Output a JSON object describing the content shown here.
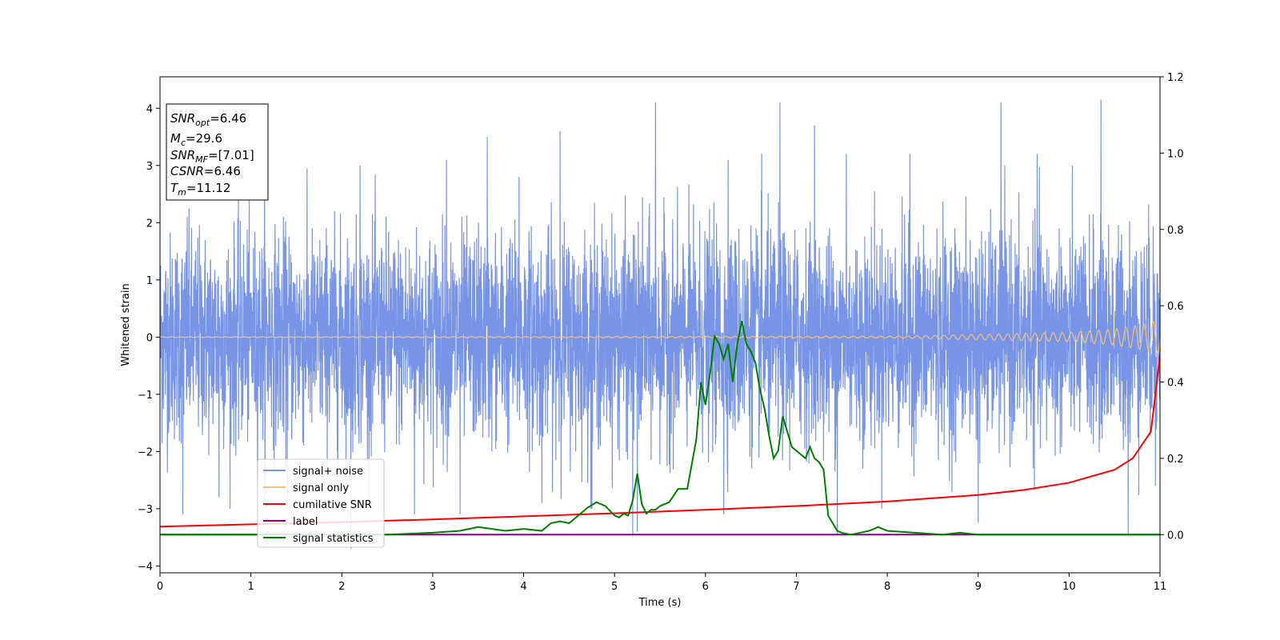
{
  "chart_data": {
    "type": "line",
    "xlabel": "Time (s)",
    "ylabel": "Whitened strain",
    "xlim": [
      0,
      11
    ],
    "ylim": [
      -4.12,
      4.55
    ],
    "y2lim": [
      -0.1,
      1.2
    ],
    "x_ticks": [
      0,
      1,
      2,
      3,
      4,
      5,
      6,
      7,
      8,
      9,
      10,
      11
    ],
    "y_ticks": [
      -4,
      -3,
      -2,
      -1,
      0,
      1,
      2,
      3,
      4
    ],
    "y2_ticks": [
      0.0,
      0.2,
      0.4,
      0.6,
      0.8,
      1.0,
      1.2
    ],
    "grid": false,
    "legend_position": "lower-left",
    "info_box": {
      "snr_opt": {
        "symbol": "SNR",
        "sub": "opt",
        "value": "=6.46"
      },
      "mc": {
        "symbol": "M",
        "sub": "c",
        "value": "=29.6"
      },
      "snr_mf": {
        "symbol": "SNR",
        "sub": "MF",
        "value": "=[7.01]"
      },
      "csnr": {
        "symbol": "CSNR",
        "sub": "",
        "value": "=6.46"
      },
      "tm": {
        "symbol": "T",
        "sub": "m",
        "value": "=11.12"
      }
    },
    "series": [
      {
        "name": "signal+ noise",
        "color": "#7894e6",
        "axis": "left",
        "noise_std": 0.9,
        "spike_max": [
          [
            0.3,
            2.1
          ],
          [
            1.15,
            3.0
          ],
          [
            2.2,
            3.0
          ],
          [
            3.15,
            3.1
          ],
          [
            3.6,
            3.5
          ],
          [
            3.95,
            2.8
          ],
          [
            4.4,
            3.6
          ],
          [
            5.45,
            4.1
          ],
          [
            6.25,
            3.1
          ],
          [
            6.62,
            3.2
          ],
          [
            6.82,
            4.1
          ],
          [
            7.2,
            3.7
          ],
          [
            7.55,
            3.2
          ],
          [
            8.25,
            3.2
          ],
          [
            9.25,
            4.1
          ],
          [
            9.65,
            3.2
          ],
          [
            10.35,
            4.15
          ],
          [
            10.95,
            3.4
          ]
        ],
        "spike_min": [
          [
            0.25,
            -3.1
          ],
          [
            0.65,
            -2.8
          ],
          [
            1.4,
            -3.0
          ],
          [
            2.1,
            -3.7
          ],
          [
            2.8,
            -3.1
          ],
          [
            3.3,
            -3.1
          ],
          [
            4.2,
            -2.9
          ],
          [
            4.75,
            -3.0
          ],
          [
            5.2,
            -3.45
          ],
          [
            5.25,
            -3.4
          ],
          [
            6.2,
            -3.1
          ],
          [
            7.45,
            -3.45
          ],
          [
            9.0,
            -3.25
          ],
          [
            10.65,
            -3.45
          ],
          [
            10.95,
            -2.6
          ]
        ]
      },
      {
        "name": "signal only",
        "color": "#f5c07a",
        "axis": "left",
        "amplitude_points": [
          [
            0,
            0.005
          ],
          [
            8,
            0.015
          ],
          [
            10,
            0.08
          ],
          [
            10.5,
            0.14
          ],
          [
            10.8,
            0.22
          ],
          [
            11,
            0.3
          ]
        ],
        "frequency_hz": 10
      },
      {
        "name": "cumilative SNR",
        "color": "#ff0000",
        "axis": "right",
        "x": [
          0,
          1,
          2,
          3,
          4,
          5,
          6,
          7,
          8,
          9,
          9.5,
          10,
          10.5,
          10.7,
          10.9,
          11
        ],
        "y": [
          0.021,
          0.027,
          0.033,
          0.04,
          0.048,
          0.056,
          0.065,
          0.075,
          0.087,
          0.104,
          0.117,
          0.136,
          0.17,
          0.2,
          0.27,
          0.47
        ]
      },
      {
        "name": "label",
        "color": "#800080",
        "axis": "right",
        "x": [
          0,
          11
        ],
        "y": [
          0.0,
          0.0
        ]
      },
      {
        "name": "signal statistics",
        "color": "#008000",
        "axis": "right",
        "x": [
          0,
          2.5,
          3,
          3.3,
          3.5,
          3.8,
          4.0,
          4.2,
          4.3,
          4.4,
          4.5,
          4.6,
          4.7,
          4.8,
          4.9,
          5.0,
          5.05,
          5.1,
          5.15,
          5.2,
          5.25,
          5.3,
          5.35,
          5.4,
          5.45,
          5.5,
          5.6,
          5.7,
          5.8,
          5.9,
          5.95,
          6.0,
          6.05,
          6.1,
          6.15,
          6.2,
          6.25,
          6.3,
          6.35,
          6.4,
          6.45,
          6.5,
          6.55,
          6.6,
          6.65,
          6.7,
          6.75,
          6.8,
          6.85,
          6.9,
          6.95,
          7.0,
          7.05,
          7.1,
          7.15,
          7.2,
          7.25,
          7.3,
          7.35,
          7.4,
          7.45,
          7.5,
          7.6,
          7.7,
          7.8,
          7.85,
          7.9,
          8.0,
          8.3,
          8.6,
          8.8,
          9.0,
          9.5,
          11
        ],
        "y": [
          0.0,
          0.0,
          0.005,
          0.01,
          0.02,
          0.01,
          0.015,
          0.01,
          0.03,
          0.035,
          0.03,
          0.05,
          0.07,
          0.085,
          0.075,
          0.05,
          0.045,
          0.055,
          0.05,
          0.09,
          0.16,
          0.08,
          0.055,
          0.065,
          0.065,
          0.075,
          0.085,
          0.12,
          0.12,
          0.25,
          0.4,
          0.34,
          0.42,
          0.52,
          0.5,
          0.46,
          0.5,
          0.4,
          0.5,
          0.56,
          0.5,
          0.48,
          0.45,
          0.38,
          0.33,
          0.26,
          0.2,
          0.22,
          0.31,
          0.27,
          0.23,
          0.22,
          0.21,
          0.2,
          0.23,
          0.2,
          0.19,
          0.17,
          0.05,
          0.03,
          0.01,
          0.005,
          0.0,
          0.005,
          0.01,
          0.015,
          0.02,
          0.01,
          0.005,
          0.0,
          0.005,
          0.0,
          0.0,
          0.0
        ]
      }
    ]
  }
}
